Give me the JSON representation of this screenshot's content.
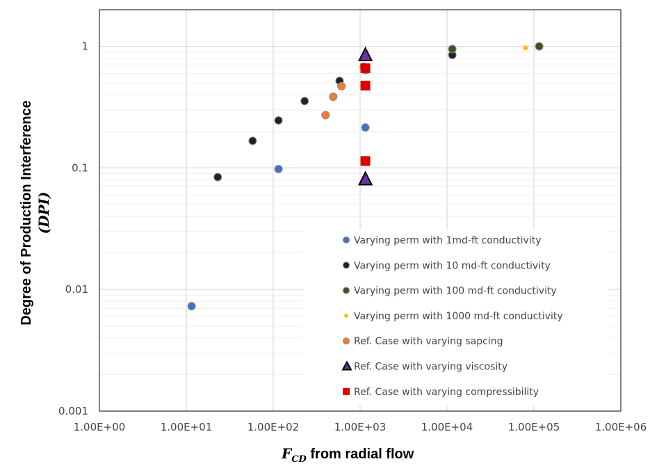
{
  "chart_data": {
    "type": "scatter",
    "x_scale": "log",
    "y_scale": "log",
    "xlim": [
      1,
      1000000
    ],
    "ylim": [
      0.001,
      2
    ],
    "x_ticks": [
      "1.00E+00",
      "1.00E+01",
      "1.00E+02",
      "1.00E+03",
      "1.00E+04",
      "1.00E+05",
      "1.00E+06"
    ],
    "y_ticks": [
      "1",
      "0.1",
      "0.01",
      "0.001"
    ],
    "xlabel_symbol": "F",
    "xlabel_subscript": "CD",
    "xlabel_text": " from radial flow",
    "ylabel_line1": "Degree of Production Interference",
    "ylabel_line2": "(DPI)",
    "grid": "major and minor gridlines",
    "legend_position": "bottom-right inside plot",
    "series": [
      {
        "name": "Varying perm with 1md-ft conductivity",
        "marker": "circle",
        "color": "#4472c4",
        "points": [
          [
            11.5,
            0.0073
          ],
          [
            115,
            0.098
          ],
          [
            1150,
            0.215
          ]
        ]
      },
      {
        "name": "Varying perm with 10 md-ft conductivity",
        "marker": "circle",
        "color": "#1f2329",
        "points": [
          [
            23,
            0.084
          ],
          [
            58,
            0.167
          ],
          [
            115,
            0.246
          ],
          [
            230,
            0.355
          ],
          [
            580,
            0.52
          ],
          [
            1150,
            0.64
          ],
          [
            11500,
            0.85
          ]
        ]
      },
      {
        "name": "Varying perm with 100 md-ft conductivity",
        "marker": "circle",
        "color": "#375623",
        "points": [
          [
            11500,
            0.95
          ],
          [
            115000,
            1.0
          ]
        ]
      },
      {
        "name": "Varying perm with 1000 md-ft conductivity",
        "marker": "circle-small",
        "color": "#ffc000",
        "points": [
          [
            80000,
            0.97
          ]
        ]
      },
      {
        "name": "Ref. Case with varying sapcing",
        "marker": "circle",
        "color": "#ed7d31",
        "points": [
          [
            400,
            0.272
          ],
          [
            490,
            0.385
          ],
          [
            610,
            0.47
          ],
          [
            1100,
            0.68
          ]
        ]
      },
      {
        "name": "Ref. Case with varying viscosity",
        "marker": "triangle",
        "color": "#7030a0",
        "points": [
          [
            1150,
            0.84
          ],
          [
            1150,
            0.08
          ]
        ]
      },
      {
        "name": "Ref. Case with varying compressibility",
        "marker": "square",
        "color": "#e00000",
        "points": [
          [
            1150,
            0.66
          ],
          [
            1150,
            0.475
          ],
          [
            1150,
            0.114
          ]
        ]
      }
    ]
  }
}
